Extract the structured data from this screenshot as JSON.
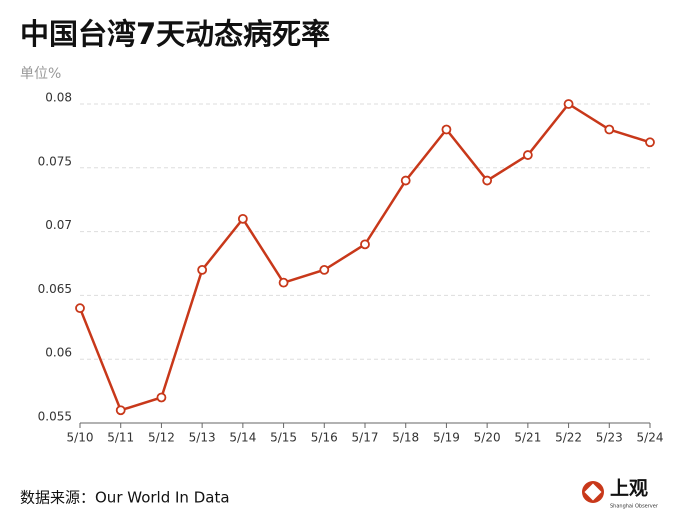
{
  "chart_data": {
    "type": "line",
    "title": "中国台湾7天动态病死率",
    "unit_label": "单位%",
    "source": "数据来源：Our World In Data",
    "logo": {
      "name": "上观",
      "subtitle": "Shanghai Observer"
    },
    "categories": [
      "5/10",
      "5/11",
      "5/12",
      "5/13",
      "5/14",
      "5/15",
      "5/16",
      "5/17",
      "5/18",
      "5/19",
      "5/20",
      "5/21",
      "5/22",
      "5/23",
      "5/24"
    ],
    "values": [
      0.064,
      0.056,
      0.057,
      0.067,
      0.071,
      0.066,
      0.067,
      0.069,
      0.074,
      0.078,
      0.074,
      0.076,
      0.08,
      0.078,
      0.077
    ],
    "color": "#c8381a",
    "ylim": [
      0.055,
      0.08
    ],
    "yticks": [
      0.055,
      0.06,
      0.065,
      0.07,
      0.075,
      0.08
    ],
    "grid": true
  }
}
